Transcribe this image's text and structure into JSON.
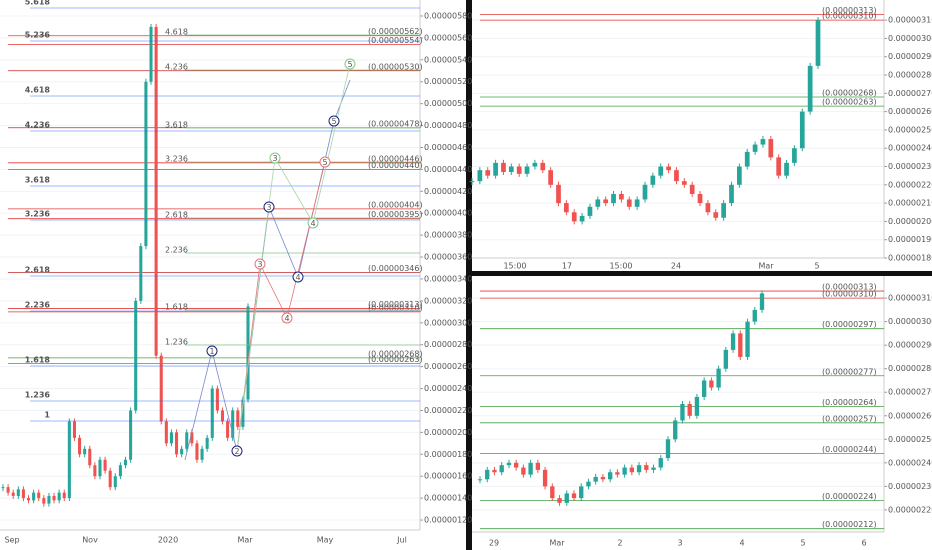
{
  "chart_data": [
    {
      "type": "candlestick",
      "up_color": "#26a69a",
      "down_color": "#ef5350",
      "ylim": [
        1.109e-06,
        5.946e-06
      ],
      "yticks": [
        {
          "value": 1.2e-06,
          "label": "0.00000120"
        },
        {
          "value": 1.4e-06,
          "label": "0.00000140"
        },
        {
          "value": 1.6e-06,
          "label": "0.00000160"
        },
        {
          "value": 1.8e-06,
          "label": "0.00000180"
        },
        {
          "value": 2e-06,
          "label": "0.00000200"
        },
        {
          "value": 2.2e-06,
          "label": "0.00000220"
        },
        {
          "value": 2.4e-06,
          "label": "0.00000240"
        },
        {
          "value": 2.6e-06,
          "label": "0.00000260"
        },
        {
          "value": 2.8e-06,
          "label": "0.00000280"
        },
        {
          "value": 3e-06,
          "label": "0.00000300"
        },
        {
          "value": 3.2e-06,
          "label": "0.00000320"
        },
        {
          "value": 3.4e-06,
          "label": "0.00000340"
        },
        {
          "value": 3.6e-06,
          "label": "0.00000360"
        },
        {
          "value": 3.8e-06,
          "label": "0.00000380"
        },
        {
          "value": 4e-06,
          "label": "0.00000400"
        },
        {
          "value": 4.2e-06,
          "label": "0.00000420"
        },
        {
          "value": 4.4e-06,
          "label": "0.00000440"
        },
        {
          "value": 4.6e-06,
          "label": "0.00000460"
        },
        {
          "value": 4.8e-06,
          "label": "0.00000480"
        },
        {
          "value": 5e-06,
          "label": "0.00000500"
        },
        {
          "value": 5.2e-06,
          "label": "0.00000520"
        },
        {
          "value": 5.4e-06,
          "label": "0.00000540"
        },
        {
          "value": 5.6e-06,
          "label": "0.00000560"
        },
        {
          "value": 5.8e-06,
          "label": "0.00000580"
        }
      ],
      "x_labels": [
        "Sep",
        "Nov",
        "2020",
        "Mar",
        "May",
        "Jul"
      ],
      "values": [
        1.5e-06,
        1.45e-06,
        1.42e-06,
        1.48e-06,
        1.4e-06,
        1.38e-06,
        1.45e-06,
        1.4e-06,
        1.35e-06,
        1.42e-06,
        1.38e-06,
        1.45e-06,
        1.4e-06,
        2.1e-06,
        1.95e-06,
        1.8e-06,
        1.85e-06,
        1.7e-06,
        1.6e-06,
        1.75e-06,
        1.65e-06,
        1.5e-06,
        1.6e-06,
        1.7e-06,
        1.75e-06,
        2.2e-06,
        3.2e-06,
        3.7e-06,
        5.2e-06,
        5.7e-06,
        2.7e-06,
        2.1e-06,
        1.9e-06,
        2e-06,
        1.8e-06,
        1.85e-06,
        2e-06,
        1.9e-06,
        1.75e-06,
        1.85e-06,
        1.95e-06,
        2.4e-06,
        2.2e-06,
        2.1e-06,
        1.95e-06,
        2.2e-06,
        2.05e-06,
        2.3e-06,
        3.15e-06
      ],
      "levels": [
        {
          "value": 5.62e-06,
          "label": "(0.00000562)",
          "color": "#e53935"
        },
        {
          "value": 5.54e-06,
          "label": "(0.00000554)",
          "color": "#e53935"
        },
        {
          "value": 5.3e-06,
          "label": "(0.00000530)",
          "color": "#c62828"
        },
        {
          "value": 4.78e-06,
          "label": "(0.00000478)",
          "color": "#c62828"
        },
        {
          "value": 4.46e-06,
          "label": "(0.00000446)",
          "color": "#e53935"
        },
        {
          "value": 4.4e-06,
          "label": "(0.00000440)",
          "color": "#e53935"
        },
        {
          "value": 4.04e-06,
          "label": "(0.00000404)",
          "color": "#e53935"
        },
        {
          "value": 3.95e-06,
          "label": "(0.00000395)",
          "color": "#e53935"
        },
        {
          "value": 3.46e-06,
          "label": "(0.00000346)",
          "color": "#c62828"
        },
        {
          "value": 3.13e-06,
          "label": "(0.00000313)",
          "color": "#e53935"
        },
        {
          "value": 3.1e-06,
          "label": "(0.00000310)",
          "color": "#e53935"
        },
        {
          "value": 2.68e-06,
          "label": "(0.00000268)",
          "color": "#43a047"
        },
        {
          "value": 2.63e-06,
          "label": "(0.00000263)",
          "color": "#43a047"
        }
      ],
      "fib_labels": [
        "5.618",
        "5.236",
        "4.618",
        "4.236",
        "3.618",
        "3.236",
        "2.618",
        "2.236",
        "1.618",
        "1.236",
        "1"
      ],
      "fib_labels_2": [
        "4.618",
        "4.236",
        "3.618",
        "3.236",
        "2.618",
        "2.236",
        "1.618",
        "1.236"
      ],
      "waves": [
        {
          "label": "1",
          "color": "#1a237e"
        },
        {
          "label": "2",
          "color": "#1a237e"
        },
        {
          "label": "3",
          "color": "#1a237e"
        },
        {
          "label": "4",
          "color": "#1a237e"
        },
        {
          "label": "5",
          "color": "#1a237e"
        },
        {
          "label": "3",
          "color": "#e57373"
        },
        {
          "label": "4",
          "color": "#e57373"
        },
        {
          "label": "5",
          "color": "#e57373"
        },
        {
          "label": "3",
          "color": "#81c784"
        },
        {
          "label": "4",
          "color": "#81c784"
        },
        {
          "label": "5",
          "color": "#81c784"
        }
      ]
    },
    {
      "type": "candlestick",
      "up_color": "#26a69a",
      "down_color": "#ef5350",
      "ylim": [
        1.8e-06,
        3.21e-06
      ],
      "yticks": [
        {
          "value": 1.8e-06,
          "label": "0.00000180"
        },
        {
          "value": 1.9e-06,
          "label": "0.00000190"
        },
        {
          "value": 2e-06,
          "label": "0.00000200"
        },
        {
          "value": 2.1e-06,
          "label": "0.00000210"
        },
        {
          "value": 2.2e-06,
          "label": "0.00000220"
        },
        {
          "value": 2.3e-06,
          "label": "0.00000230"
        },
        {
          "value": 2.4e-06,
          "label": "0.00000240"
        },
        {
          "value": 2.5e-06,
          "label": "0.00000250"
        },
        {
          "value": 2.6e-06,
          "label": "0.00000260"
        },
        {
          "value": 2.7e-06,
          "label": "0.00000270"
        },
        {
          "value": 2.8e-06,
          "label": "0.00000280"
        },
        {
          "value": 2.9e-06,
          "label": "0.00000290"
        },
        {
          "value": 3e-06,
          "label": "0.00000300"
        },
        {
          "value": 3.1e-06,
          "label": "0.00000310"
        }
      ],
      "x_labels": [
        "15:00",
        "17",
        "15:00",
        "24",
        "Mar",
        "5"
      ],
      "values": [
        2.22e-06,
        2.28e-06,
        2.25e-06,
        2.32e-06,
        2.27e-06,
        2.3e-06,
        2.26e-06,
        2.3e-06,
        2.32e-06,
        2.28e-06,
        2.2e-06,
        2.1e-06,
        2.05e-06,
        2e-06,
        2.03e-06,
        2.08e-06,
        2.12e-06,
        2.1e-06,
        2.15e-06,
        2.12e-06,
        2.08e-06,
        2.12e-06,
        2.2e-06,
        2.25e-06,
        2.3e-06,
        2.28e-06,
        2.22e-06,
        2.2e-06,
        2.15e-06,
        2.1e-06,
        2.05e-06,
        2.02e-06,
        2.1e-06,
        2.2e-06,
        2.3e-06,
        2.38e-06,
        2.42e-06,
        2.45e-06,
        2.35e-06,
        2.25e-06,
        2.32e-06,
        2.4e-06,
        2.6e-06,
        2.85e-06,
        3.1e-06
      ],
      "levels": [
        {
          "value": 3.13e-06,
          "label": "(0.00000313)",
          "color": "#e53935"
        },
        {
          "value": 3.1e-06,
          "label": "(0.00000310)",
          "color": "#e53935"
        },
        {
          "value": 2.68e-06,
          "label": "(0.00000268)",
          "color": "#43a047"
        },
        {
          "value": 2.63e-06,
          "label": "(0.00000263)",
          "color": "#43a047"
        }
      ]
    },
    {
      "type": "candlestick",
      "up_color": "#26a69a",
      "down_color": "#ef5350",
      "ylim": [
        2.106e-06,
        3.194e-06
      ],
      "yticks": [
        {
          "value": 2.2e-06,
          "label": "0.00000220"
        },
        {
          "value": 2.3e-06,
          "label": "0.00000230"
        },
        {
          "value": 2.4e-06,
          "label": "0.00000240"
        },
        {
          "value": 2.5e-06,
          "label": "0.00000250"
        },
        {
          "value": 2.6e-06,
          "label": "0.00000260"
        },
        {
          "value": 2.7e-06,
          "label": "0.00000270"
        },
        {
          "value": 2.8e-06,
          "label": "0.00000280"
        },
        {
          "value": 2.9e-06,
          "label": "0.00000290"
        },
        {
          "value": 3e-06,
          "label": "0.00000300"
        },
        {
          "value": 3.1e-06,
          "label": "0.00000310"
        }
      ],
      "x_labels": [
        "29",
        "Mar",
        "2",
        "3",
        "4",
        "5",
        "6"
      ],
      "values": [
        2.33e-06,
        2.37e-06,
        2.36e-06,
        2.39e-06,
        2.4e-06,
        2.38e-06,
        2.35e-06,
        2.4e-06,
        2.37e-06,
        2.3e-06,
        2.25e-06,
        2.23e-06,
        2.27e-06,
        2.25e-06,
        2.3e-06,
        2.32e-06,
        2.34e-06,
        2.33e-06,
        2.36e-06,
        2.35e-06,
        2.38e-06,
        2.36e-06,
        2.39e-06,
        2.37e-06,
        2.38e-06,
        2.42e-06,
        2.5e-06,
        2.58e-06,
        2.65e-06,
        2.6e-06,
        2.68e-06,
        2.75e-06,
        2.72e-06,
        2.8e-06,
        2.88e-06,
        2.95e-06,
        2.85e-06,
        3e-06,
        3.05e-06,
        3.12e-06
      ],
      "levels": [
        {
          "value": 3.13e-06,
          "label": "(0.00000313)",
          "color": "#e53935"
        },
        {
          "value": 3.1e-06,
          "label": "(0.00000310)",
          "color": "#e53935"
        },
        {
          "value": 2.97e-06,
          "label": "(0.00000297)",
          "color": "#43a047"
        },
        {
          "value": 2.77e-06,
          "label": "(0.00000277)",
          "color": "#43a047"
        },
        {
          "value": 2.64e-06,
          "label": "(0.00000264)",
          "color": "#43a047"
        },
        {
          "value": 2.57e-06,
          "label": "(0.00000257)",
          "color": "#43a047"
        },
        {
          "value": 2.44e-06,
          "label": "(0.00000244)",
          "color": "#43a047"
        },
        {
          "value": 2.24e-06,
          "label": "(0.00000224)",
          "color": "#43a047"
        },
        {
          "value": 2.12e-06,
          "label": "(0.00000212)",
          "color": "#43a047"
        }
      ]
    }
  ]
}
